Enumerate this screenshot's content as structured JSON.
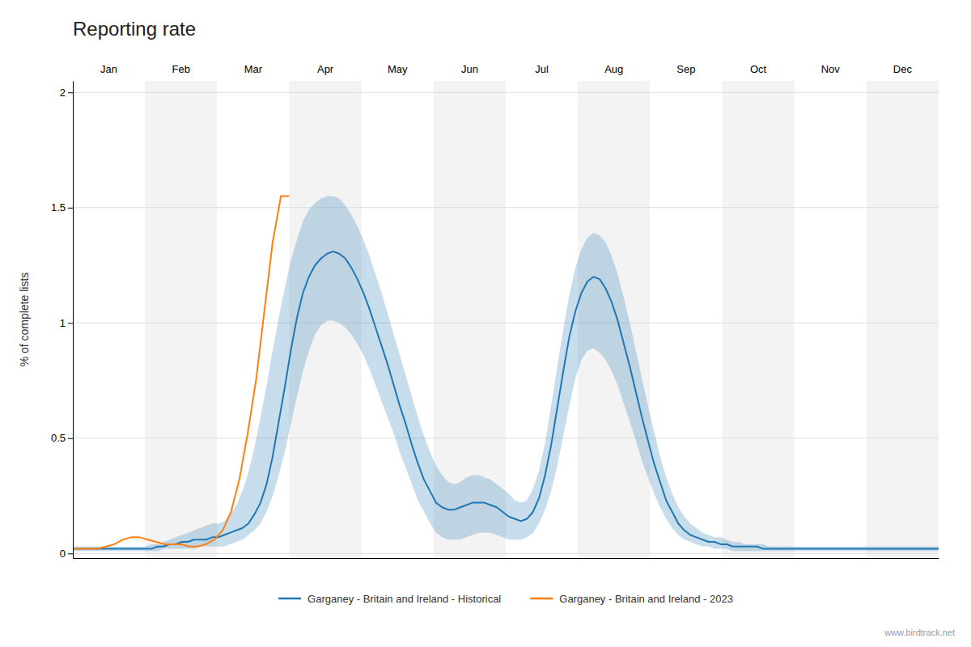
{
  "chart_data": {
    "type": "line",
    "title": "Reporting rate",
    "ylabel": "% of complete lists",
    "categories": [
      "Jan",
      "Feb",
      "Mar",
      "Apr",
      "May",
      "Jun",
      "Jul",
      "Aug",
      "Sep",
      "Oct",
      "Nov",
      "Dec"
    ],
    "xlim": [
      0,
      143
    ],
    "ylim": [
      -0.02,
      2.05
    ],
    "yticks": [
      0,
      0.5,
      1,
      1.5,
      2
    ],
    "grid": true,
    "legend": "bottom",
    "annotations": [
      "www.birdtrack.net"
    ],
    "series": [
      {
        "name": "Garganey - Britain and Ireland - Historical",
        "x": [
          0,
          1,
          2,
          3,
          4,
          5,
          6,
          7,
          8,
          9,
          10,
          11,
          12,
          13,
          14,
          15,
          16,
          17,
          18,
          19,
          20,
          21,
          22,
          23,
          24,
          25,
          26,
          27,
          28,
          29,
          30,
          31,
          32,
          33,
          34,
          35,
          36,
          37,
          38,
          39,
          40,
          41,
          42,
          43,
          44,
          45,
          46,
          47,
          48,
          49,
          50,
          51,
          52,
          53,
          54,
          55,
          56,
          57,
          58,
          59,
          60,
          61,
          62,
          63,
          64,
          65,
          66,
          67,
          68,
          69,
          70,
          71,
          72,
          73,
          74,
          75,
          76,
          77,
          78,
          79,
          80,
          81,
          82,
          83,
          84,
          85,
          86,
          87,
          88,
          89,
          90,
          91,
          92,
          93,
          94,
          95,
          96,
          97,
          98,
          99,
          100,
          101,
          102,
          103,
          104,
          105,
          106,
          107,
          108,
          109,
          110,
          111,
          112,
          113,
          114,
          115,
          116,
          117,
          118,
          119,
          120,
          121,
          122,
          123,
          124,
          125,
          126,
          127,
          128,
          129,
          130,
          131,
          132,
          133,
          134,
          135,
          136,
          137,
          138,
          139,
          140,
          141,
          142,
          143
        ],
        "values": [
          0.02,
          0.02,
          0.02,
          0.02,
          0.02,
          0.02,
          0.02,
          0.02,
          0.02,
          0.02,
          0.02,
          0.02,
          0.02,
          0.02,
          0.03,
          0.03,
          0.04,
          0.04,
          0.05,
          0.05,
          0.06,
          0.06,
          0.06,
          0.07,
          0.07,
          0.08,
          0.09,
          0.1,
          0.11,
          0.13,
          0.17,
          0.22,
          0.3,
          0.42,
          0.57,
          0.72,
          0.88,
          1.02,
          1.13,
          1.2,
          1.25,
          1.28,
          1.3,
          1.31,
          1.3,
          1.28,
          1.24,
          1.19,
          1.13,
          1.06,
          0.98,
          0.9,
          0.82,
          0.73,
          0.64,
          0.56,
          0.47,
          0.39,
          0.32,
          0.27,
          0.22,
          0.2,
          0.19,
          0.19,
          0.2,
          0.21,
          0.22,
          0.22,
          0.22,
          0.21,
          0.2,
          0.18,
          0.16,
          0.15,
          0.14,
          0.15,
          0.18,
          0.24,
          0.34,
          0.47,
          0.63,
          0.79,
          0.94,
          1.05,
          1.13,
          1.18,
          1.2,
          1.19,
          1.15,
          1.09,
          1.01,
          0.91,
          0.81,
          0.7,
          0.59,
          0.49,
          0.39,
          0.31,
          0.23,
          0.18,
          0.13,
          0.1,
          0.08,
          0.07,
          0.06,
          0.05,
          0.05,
          0.04,
          0.04,
          0.03,
          0.03,
          0.03,
          0.03,
          0.03,
          0.02,
          0.02,
          0.02,
          0.02,
          0.02,
          0.02,
          0.02,
          0.02,
          0.02,
          0.02,
          0.02,
          0.02,
          0.02,
          0.02,
          0.02,
          0.02,
          0.02,
          0.02,
          0.02,
          0.02,
          0.02,
          0.02,
          0.02,
          0.02,
          0.02,
          0.02,
          0.02,
          0.02,
          0.02,
          0.02
        ],
        "upper": [
          0.03,
          0.03,
          0.03,
          0.03,
          0.03,
          0.03,
          0.03,
          0.03,
          0.03,
          0.03,
          0.03,
          0.03,
          0.03,
          0.04,
          0.04,
          0.05,
          0.06,
          0.07,
          0.08,
          0.09,
          0.1,
          0.11,
          0.12,
          0.13,
          0.13,
          0.14,
          0.17,
          0.21,
          0.27,
          0.35,
          0.46,
          0.59,
          0.73,
          0.88,
          1.02,
          1.15,
          1.27,
          1.36,
          1.44,
          1.49,
          1.52,
          1.54,
          1.55,
          1.55,
          1.54,
          1.51,
          1.47,
          1.42,
          1.36,
          1.29,
          1.21,
          1.13,
          1.04,
          0.95,
          0.86,
          0.77,
          0.68,
          0.59,
          0.51,
          0.44,
          0.38,
          0.34,
          0.31,
          0.3,
          0.31,
          0.33,
          0.34,
          0.34,
          0.33,
          0.32,
          0.3,
          0.28,
          0.26,
          0.23,
          0.22,
          0.23,
          0.28,
          0.36,
          0.48,
          0.64,
          0.81,
          0.97,
          1.12,
          1.24,
          1.32,
          1.37,
          1.39,
          1.38,
          1.35,
          1.29,
          1.21,
          1.11,
          1.0,
          0.88,
          0.76,
          0.64,
          0.53,
          0.42,
          0.33,
          0.26,
          0.2,
          0.16,
          0.13,
          0.11,
          0.09,
          0.08,
          0.07,
          0.07,
          0.06,
          0.05,
          0.05,
          0.04,
          0.04,
          0.04,
          0.04,
          0.03,
          0.03,
          0.03,
          0.03,
          0.03,
          0.03,
          0.03,
          0.03,
          0.03,
          0.03,
          0.03,
          0.03,
          0.03,
          0.03,
          0.03,
          0.03,
          0.03,
          0.03,
          0.03,
          0.03,
          0.03,
          0.03,
          0.03,
          0.03,
          0.03,
          0.03,
          0.03,
          0.03,
          0.03
        ],
        "lower": [
          0.01,
          0.01,
          0.01,
          0.01,
          0.01,
          0.01,
          0.01,
          0.01,
          0.01,
          0.01,
          0.01,
          0.01,
          0.01,
          0.01,
          0.01,
          0.02,
          0.02,
          0.02,
          0.02,
          0.02,
          0.02,
          0.03,
          0.03,
          0.03,
          0.03,
          0.03,
          0.04,
          0.05,
          0.06,
          0.08,
          0.1,
          0.13,
          0.18,
          0.25,
          0.34,
          0.44,
          0.56,
          0.68,
          0.79,
          0.88,
          0.95,
          0.99,
          1.01,
          1.01,
          1.0,
          0.98,
          0.95,
          0.91,
          0.86,
          0.8,
          0.73,
          0.66,
          0.59,
          0.52,
          0.44,
          0.37,
          0.3,
          0.23,
          0.18,
          0.13,
          0.09,
          0.07,
          0.06,
          0.06,
          0.06,
          0.07,
          0.08,
          0.09,
          0.09,
          0.09,
          0.08,
          0.07,
          0.06,
          0.06,
          0.06,
          0.07,
          0.09,
          0.13,
          0.19,
          0.27,
          0.38,
          0.51,
          0.64,
          0.76,
          0.84,
          0.88,
          0.89,
          0.87,
          0.84,
          0.79,
          0.73,
          0.65,
          0.57,
          0.49,
          0.4,
          0.33,
          0.26,
          0.2,
          0.15,
          0.11,
          0.08,
          0.06,
          0.05,
          0.04,
          0.03,
          0.03,
          0.02,
          0.02,
          0.02,
          0.01,
          0.01,
          0.01,
          0.01,
          0.01,
          0.01,
          0.01,
          0.01,
          0.01,
          0.01,
          0.01,
          0.01,
          0.01,
          0.01,
          0.01,
          0.01,
          0.01,
          0.01,
          0.01,
          0.01,
          0.01,
          0.01,
          0.01,
          0.01,
          0.01,
          0.01,
          0.01,
          0.01,
          0.01,
          0.01,
          0.01,
          0.01,
          0.01,
          0.01,
          0.01
        ]
      },
      {
        "name": "Garganey - Britain and Ireland - 2023",
        "x": [
          0,
          1.375,
          2.75,
          4.125,
          5.5,
          6.875,
          8.25,
          9.625,
          11,
          12.375,
          13.75,
          15.125,
          16.5,
          17.875,
          19.25,
          20.625,
          22,
          23.375,
          24.75,
          26.125,
          27.5,
          28.875,
          30.25,
          31.625,
          33,
          34.375,
          35.75
        ],
        "values": [
          0.02,
          0.02,
          0.02,
          0.02,
          0.03,
          0.04,
          0.06,
          0.07,
          0.07,
          0.06,
          0.05,
          0.04,
          0.04,
          0.04,
          0.03,
          0.03,
          0.04,
          0.06,
          0.1,
          0.18,
          0.32,
          0.52,
          0.75,
          1.05,
          1.35,
          1.55,
          1.55
        ]
      }
    ]
  }
}
